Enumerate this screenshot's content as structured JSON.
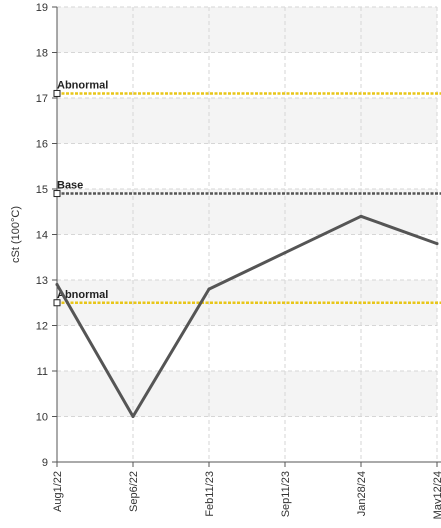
{
  "chart_data": {
    "type": "line",
    "title": "",
    "xlabel": "",
    "ylabel": "cSt (100°C)",
    "ylim": [
      9,
      19
    ],
    "yticks": [
      9,
      10,
      11,
      12,
      13,
      14,
      15,
      16,
      17,
      18,
      19
    ],
    "xticks": [
      "Aug1/22",
      "Sep6/22",
      "Feb11/23",
      "Sep11/23",
      "Jan28/24",
      "May12/24"
    ],
    "grid": true,
    "series": [
      {
        "values": [
          12.9,
          10.0,
          12.8,
          13.6,
          14.4,
          13.8
        ],
        "color": "#555555"
      }
    ],
    "reference_lines": [
      {
        "label": "Abnormal",
        "value": 17.1,
        "color": "#e8c619"
      },
      {
        "label": "Base",
        "value": 14.9,
        "color": "#555555"
      },
      {
        "label": "Abnormal",
        "value": 12.5,
        "color": "#e8c619"
      }
    ],
    "band_colors": [
      "#f4f4f4",
      "#ffffff"
    ]
  }
}
